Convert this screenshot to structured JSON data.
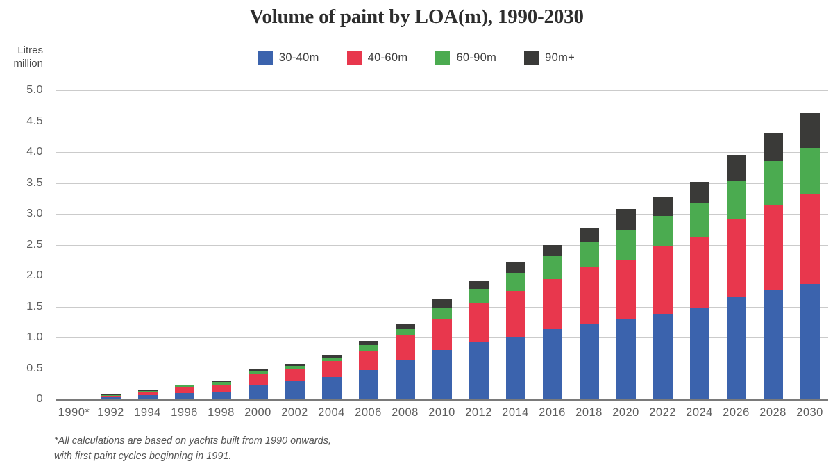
{
  "title": "Volume of paint by LOA(m), 1990-2030",
  "y_axis_unit": {
    "line1": "Litres",
    "line2": "million"
  },
  "footnote": {
    "line1": "*All calculations are based on yachts built from 1990 onwards,",
    "line2": "with first paint cycles beginning in 1991."
  },
  "colors": {
    "blue_30_40m": "#3B63AD",
    "red_40_60m": "#E8374D",
    "green_60_90m": "#4BAB50",
    "black_90m_plus": "#3A3A38",
    "gridline": "#CBCBCB",
    "axis_line": "#7A7A7A",
    "tick_text": "#5E5E5E",
    "title_text": "#2D2D2D"
  },
  "chart_data": {
    "type": "bar",
    "stacked": true,
    "title": "Volume of paint by LOA(m), 1990-2030",
    "xlabel": "",
    "ylabel": "Litres million",
    "ylim": [
      0,
      5.0
    ],
    "ytick_values": [
      5.0,
      4.5,
      4.0,
      3.5,
      3.0,
      2.5,
      2.0,
      1.5,
      1.0,
      0.5,
      0
    ],
    "ytick_labels": [
      "5.0",
      "4.5",
      "4.0",
      "3.5",
      "3.0",
      "2.5",
      "2.0",
      "1.5",
      "1.0",
      "0.5",
      "0"
    ],
    "grid": true,
    "legend_position": "top-center",
    "categories": [
      "1990*",
      "1992",
      "1994",
      "1996",
      "1998",
      "2000",
      "2002",
      "2004",
      "2006",
      "2008",
      "2010",
      "2012",
      "2014",
      "2016",
      "2018",
      "2020",
      "2022",
      "2024",
      "2026",
      "2028",
      "2030"
    ],
    "series": [
      {
        "name": "30-40m",
        "color": "#3B63AD",
        "values": [
          0,
          0.03,
          0.07,
          0.1,
          0.12,
          0.23,
          0.29,
          0.36,
          0.47,
          0.63,
          0.8,
          0.93,
          1.0,
          1.13,
          1.21,
          1.29,
          1.38,
          1.48,
          1.65,
          1.76,
          1.87
        ]
      },
      {
        "name": "40-60m",
        "color": "#E8374D",
        "values": [
          0,
          0.02,
          0.05,
          0.09,
          0.12,
          0.17,
          0.2,
          0.26,
          0.31,
          0.4,
          0.5,
          0.62,
          0.75,
          0.81,
          0.92,
          0.97,
          1.1,
          1.15,
          1.27,
          1.39,
          1.46
        ]
      },
      {
        "name": "60-90m",
        "color": "#4BAB50",
        "values": [
          0,
          0.02,
          0.02,
          0.03,
          0.04,
          0.05,
          0.05,
          0.06,
          0.1,
          0.1,
          0.18,
          0.24,
          0.29,
          0.38,
          0.42,
          0.48,
          0.49,
          0.55,
          0.62,
          0.7,
          0.74
        ]
      },
      {
        "name": "90m+",
        "color": "#3A3A38",
        "values": [
          0,
          0.01,
          0.01,
          0.02,
          0.02,
          0.03,
          0.03,
          0.04,
          0.06,
          0.08,
          0.14,
          0.13,
          0.17,
          0.17,
          0.23,
          0.34,
          0.31,
          0.34,
          0.42,
          0.45,
          0.56
        ]
      }
    ],
    "totals": [
      0,
      0.08,
      0.15,
      0.24,
      0.3,
      0.48,
      0.57,
      0.72,
      0.94,
      1.21,
      1.62,
      1.92,
      2.21,
      2.49,
      2.78,
      3.08,
      3.28,
      3.52,
      3.96,
      4.3,
      4.63
    ],
    "footnote": "*All calculations are based on yachts built from 1990 onwards, with first paint cycles beginning in 1991."
  }
}
